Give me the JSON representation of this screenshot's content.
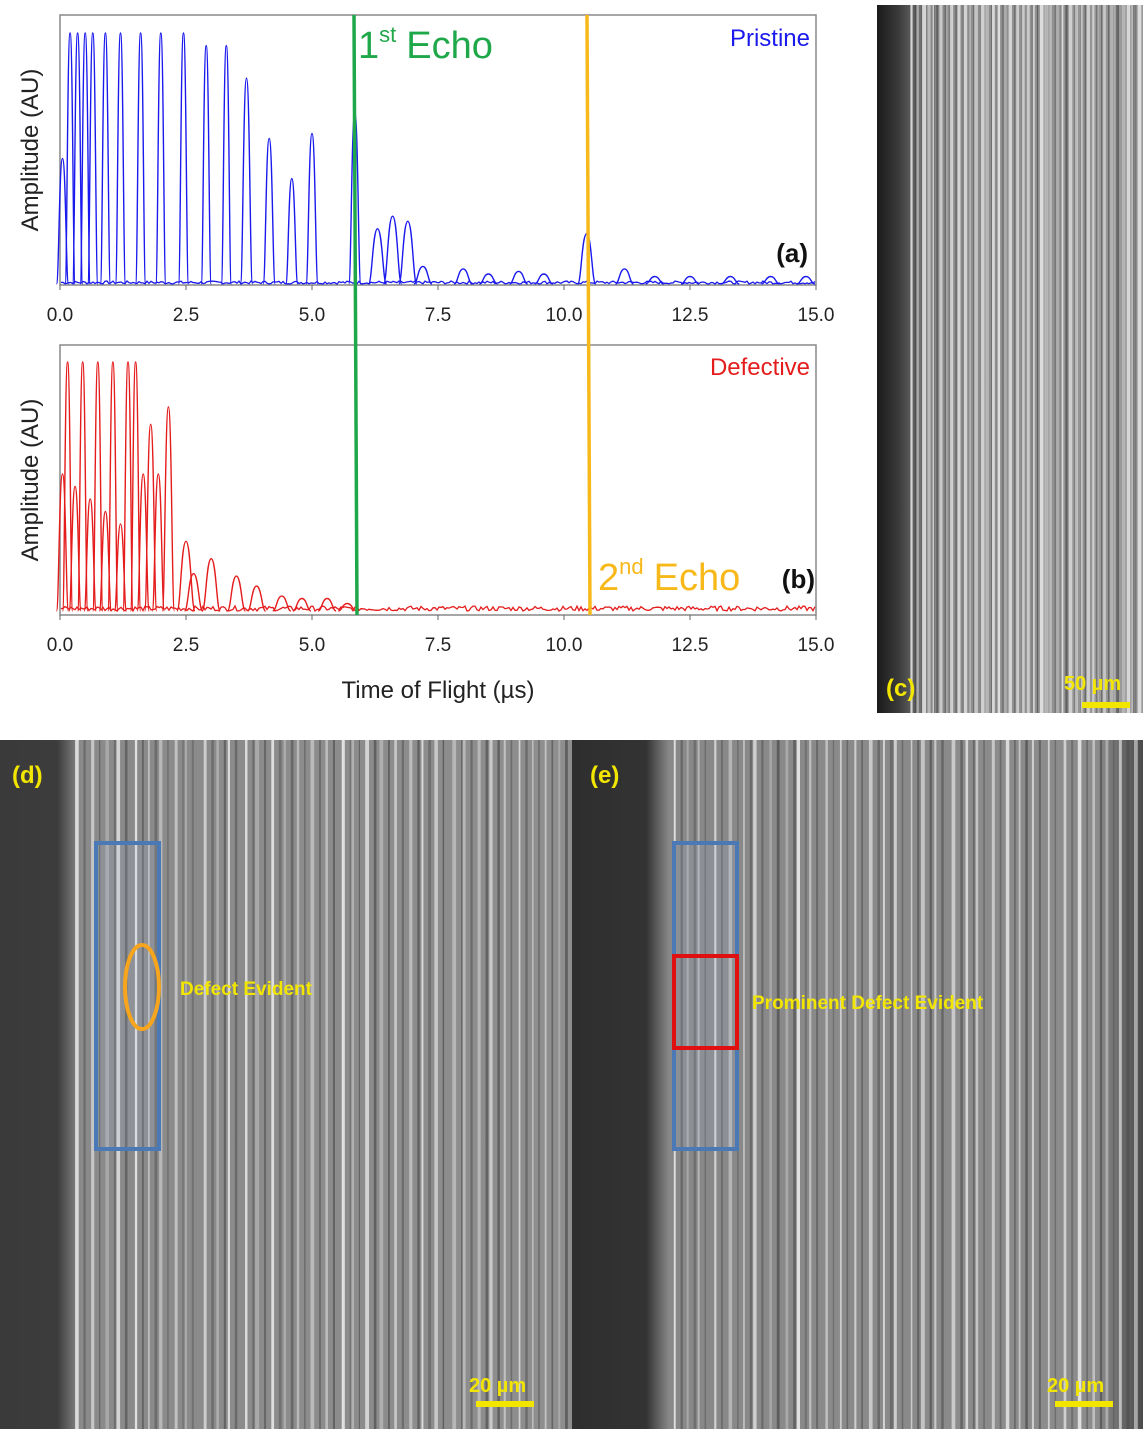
{
  "chart_data": [
    {
      "panel": "(a)",
      "type": "line",
      "series": [
        {
          "name": "Pristine",
          "color": "#1a1aee"
        }
      ],
      "legend_label": "Pristine",
      "xlabel": "",
      "ylabel": "Amplitude (AU)",
      "xlim": [
        0,
        15
      ],
      "ylim": [
        0,
        1
      ],
      "xticks": [
        "0.0",
        "2.5",
        "5.0",
        "7.5",
        "10.0",
        "12.5",
        "15.0"
      ],
      "peaks": [
        {
          "x": 0.05,
          "y": 0.5
        },
        {
          "x": 0.2,
          "y": 1.0
        },
        {
          "x": 0.35,
          "y": 1.0
        },
        {
          "x": 0.5,
          "y": 1.0
        },
        {
          "x": 0.65,
          "y": 1.0
        },
        {
          "x": 0.9,
          "y": 1.0
        },
        {
          "x": 1.2,
          "y": 1.0
        },
        {
          "x": 1.6,
          "y": 1.0
        },
        {
          "x": 2.0,
          "y": 1.0
        },
        {
          "x": 2.45,
          "y": 1.0
        },
        {
          "x": 2.9,
          "y": 0.95
        },
        {
          "x": 3.3,
          "y": 0.95
        },
        {
          "x": 3.7,
          "y": 0.82
        },
        {
          "x": 4.15,
          "y": 0.58
        },
        {
          "x": 4.6,
          "y": 0.42
        },
        {
          "x": 5.0,
          "y": 0.6
        },
        {
          "x": 5.85,
          "y": 0.68
        },
        {
          "x": 6.3,
          "y": 0.22
        },
        {
          "x": 6.6,
          "y": 0.27
        },
        {
          "x": 6.9,
          "y": 0.25
        },
        {
          "x": 7.2,
          "y": 0.07
        },
        {
          "x": 8.0,
          "y": 0.06
        },
        {
          "x": 8.5,
          "y": 0.04
        },
        {
          "x": 9.1,
          "y": 0.05
        },
        {
          "x": 9.6,
          "y": 0.04
        },
        {
          "x": 10.45,
          "y": 0.2
        },
        {
          "x": 11.2,
          "y": 0.06
        },
        {
          "x": 11.8,
          "y": 0.03
        },
        {
          "x": 12.5,
          "y": 0.03
        },
        {
          "x": 13.3,
          "y": 0.03
        },
        {
          "x": 14.1,
          "y": 0.03
        },
        {
          "x": 14.8,
          "y": 0.03
        }
      ]
    },
    {
      "panel": "(b)",
      "type": "line",
      "series": [
        {
          "name": "Defective",
          "color": "#e51c1c"
        }
      ],
      "legend_label": "Defective",
      "xlabel": "Time of Flight (µs)",
      "ylabel": "Amplitude (AU)",
      "xlim": [
        0,
        15
      ],
      "ylim": [
        0,
        1
      ],
      "xticks": [
        "0.0",
        "2.5",
        "5.0",
        "7.5",
        "10.0",
        "12.5",
        "15.0"
      ],
      "peaks": [
        {
          "x": 0.05,
          "y": 0.55
        },
        {
          "x": 0.15,
          "y": 1.0
        },
        {
          "x": 0.3,
          "y": 0.5
        },
        {
          "x": 0.45,
          "y": 1.0
        },
        {
          "x": 0.6,
          "y": 0.45
        },
        {
          "x": 0.75,
          "y": 1.0
        },
        {
          "x": 0.9,
          "y": 0.4
        },
        {
          "x": 1.05,
          "y": 1.0
        },
        {
          "x": 1.2,
          "y": 0.35
        },
        {
          "x": 1.35,
          "y": 1.0
        },
        {
          "x": 1.5,
          "y": 1.0
        },
        {
          "x": 1.65,
          "y": 0.55
        },
        {
          "x": 1.8,
          "y": 0.75
        },
        {
          "x": 1.95,
          "y": 0.55
        },
        {
          "x": 2.15,
          "y": 0.82
        },
        {
          "x": 2.5,
          "y": 0.28
        },
        {
          "x": 2.65,
          "y": 0.15
        },
        {
          "x": 3.0,
          "y": 0.21
        },
        {
          "x": 3.5,
          "y": 0.14
        },
        {
          "x": 3.9,
          "y": 0.1
        },
        {
          "x": 4.4,
          "y": 0.06
        },
        {
          "x": 4.8,
          "y": 0.05
        },
        {
          "x": 5.3,
          "y": 0.05
        },
        {
          "x": 5.7,
          "y": 0.03
        }
      ],
      "noise_level": 0.02
    }
  ],
  "markers": {
    "first_echo": {
      "label_main": "1",
      "label_sup": "st",
      "label_word": "Echo",
      "x": 5.85,
      "color": "#1fa84a"
    },
    "second_echo": {
      "label_main": "2",
      "label_sup": "nd",
      "label_word": "Echo",
      "x": 10.5,
      "color": "#f7b91a"
    }
  },
  "panels": {
    "a": "(a)",
    "b": "(b)",
    "c": "(c)",
    "d": "(d)",
    "e": "(e)"
  },
  "scale_bars": {
    "c": "50 µm",
    "d": "20 µm",
    "e": "20 µm"
  },
  "annotations": {
    "d_label": "Defect Evident",
    "e_label": "Prominent Defect Evident"
  },
  "colors": {
    "scale_and_text": "#f2e600",
    "blue_box": "#4a79b5",
    "orange_ellipse": "#f7a51c",
    "red_box": "#e01010"
  }
}
